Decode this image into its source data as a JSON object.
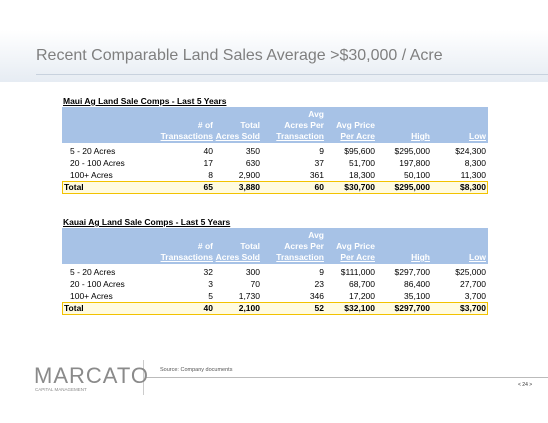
{
  "header": {
    "title": "Recent Comparable Land Sales Average >$30,000 / Acre"
  },
  "tables": [
    {
      "title": "Maui Ag Land Sale Comps - Last 5 Years",
      "columns": [
        [
          "# of",
          "Transactions"
        ],
        [
          "Total",
          "Acres Sold"
        ],
        [
          "Avg",
          "Acres Per",
          "Transaction"
        ],
        [
          "Avg Price",
          "Per Acre"
        ],
        [
          "High"
        ],
        [
          "Low"
        ]
      ],
      "rows": [
        [
          "5 - 20 Acres",
          "40",
          "350",
          "9",
          "$95,600",
          "$295,000",
          "$24,300"
        ],
        [
          "20 - 100 Acres",
          "17",
          "630",
          "37",
          "51,700",
          "197,800",
          "8,300"
        ],
        [
          "100+ Acres",
          "8",
          "2,900",
          "361",
          "18,300",
          "50,100",
          "11,300"
        ]
      ],
      "total": [
        "Total",
        "65",
        "3,880",
        "60",
        "$30,700",
        "$295,000",
        "$8,300"
      ]
    },
    {
      "title": "Kauai Ag Land Sale Comps - Last 5 Years",
      "columns": [
        [
          "# of",
          "Transactions"
        ],
        [
          "Total",
          "Acres Sold"
        ],
        [
          "Avg",
          "Acres Per",
          "Transaction"
        ],
        [
          "Avg Price",
          "Per Acre"
        ],
        [
          "High"
        ],
        [
          "Low"
        ]
      ],
      "rows": [
        [
          "5 - 20 Acres",
          "32",
          "300",
          "9",
          "$111,000",
          "$297,700",
          "$25,000"
        ],
        [
          "20 - 100 Acres",
          "3",
          "70",
          "23",
          "68,700",
          "86,400",
          "27,700"
        ],
        [
          "100+ Acres",
          "5",
          "1,730",
          "346",
          "17,200",
          "35,100",
          "3,700"
        ]
      ],
      "total": [
        "Total",
        "40",
        "2,100",
        "52",
        "$32,100",
        "$297,700",
        "$3,700"
      ]
    }
  ],
  "footer": {
    "logo": "MARCATO",
    "logo_sub": "CAPITAL MANAGEMENT",
    "source": "Source: Company documents",
    "page": "< 24 >"
  }
}
